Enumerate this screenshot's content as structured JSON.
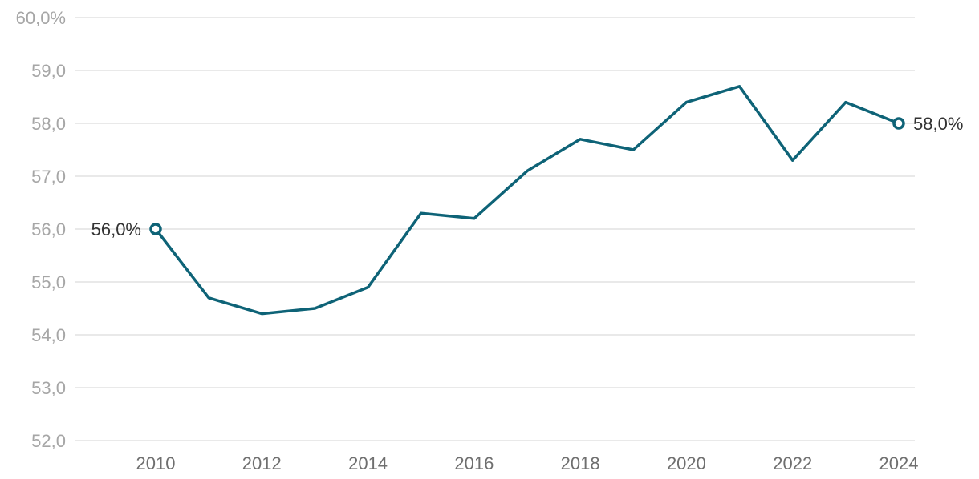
{
  "chart_data": {
    "type": "line",
    "x": [
      2010,
      2011,
      2012,
      2013,
      2014,
      2015,
      2016,
      2017,
      2018,
      2019,
      2020,
      2021,
      2022,
      2023,
      2024
    ],
    "series": [
      {
        "values": [
          56.0,
          54.7,
          54.4,
          54.5,
          54.9,
          56.3,
          56.2,
          57.1,
          57.7,
          57.5,
          58.4,
          58.7,
          57.3,
          58.4,
          58.0
        ]
      }
    ],
    "ylim": [
      52,
      60
    ],
    "yticks": [
      "52,0",
      "53,0",
      "54,0",
      "55,0",
      "56,0",
      "57,0",
      "58,0",
      "59,0",
      "60,0%"
    ],
    "xticks": [
      "2010",
      "2012",
      "2014",
      "2016",
      "2018",
      "2020",
      "2022",
      "2024"
    ],
    "annotations": [
      {
        "x": 2010,
        "text": "56,0%"
      },
      {
        "x": 2024,
        "text": "58,0%"
      }
    ],
    "grid": true,
    "line_color": "#0e6377",
    "grid_color": "#dcdcdc"
  }
}
